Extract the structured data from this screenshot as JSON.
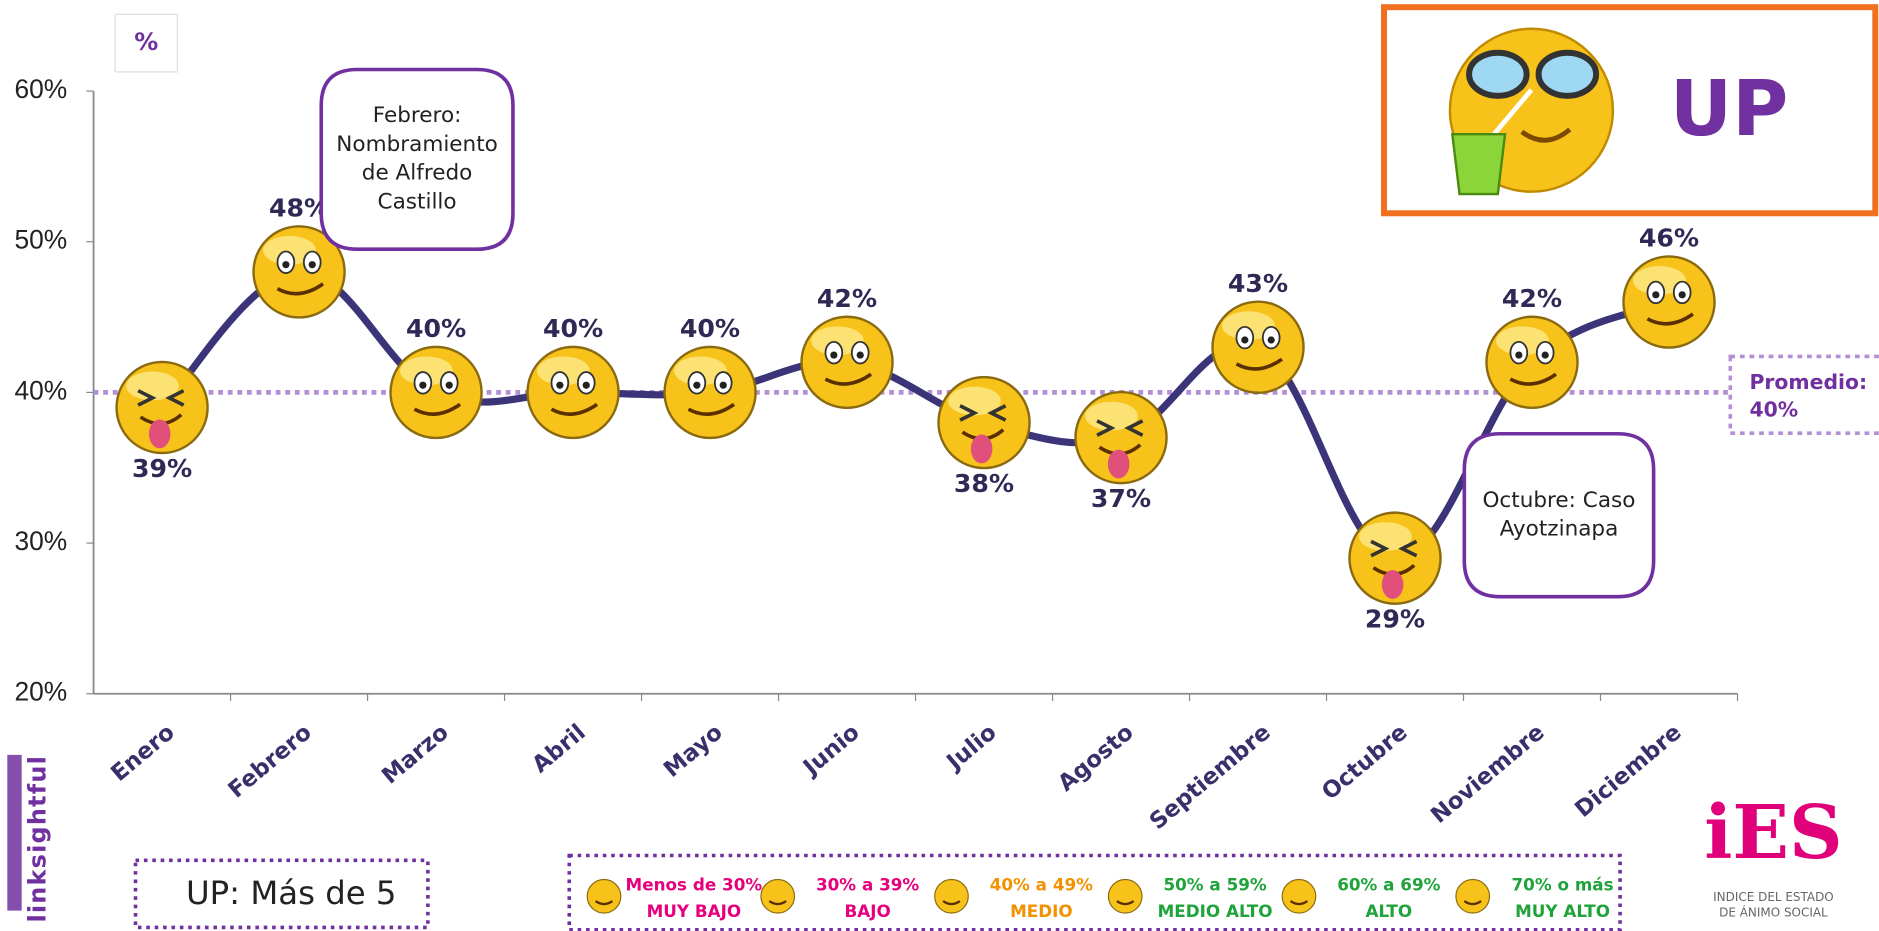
{
  "chart_data": {
    "type": "line",
    "title": "UP",
    "unit": "%",
    "note": "UP: Más de 5",
    "brand": "linksightful",
    "logo": "iES",
    "logo_caption": [
      "INDICE DEL ESTADO",
      "DE ÁNIMO SOCIAL"
    ],
    "categories": [
      "Enero",
      "Febrero",
      "Marzo",
      "Abril",
      "Mayo",
      "Junio",
      "Julio",
      "Agosto",
      "Septiembre",
      "Octubre",
      "Noviembre",
      "Diciembre"
    ],
    "series": [
      {
        "name": "UP",
        "color": "#3b3478",
        "values": [
          39,
          48,
          40,
          40,
          40,
          42,
          38,
          37,
          43,
          29,
          42,
          46
        ],
        "value_labels": [
          "39%",
          "48%",
          "40%",
          "40%",
          "40%",
          "42%",
          "38%",
          "37%",
          "43%",
          "29%",
          "42%",
          "46%"
        ]
      }
    ],
    "ylim": [
      20,
      60
    ],
    "yticks": [
      {
        "value": 20,
        "label": "20%"
      },
      {
        "value": 30,
        "label": "30%"
      },
      {
        "value": 40,
        "label": "40%"
      },
      {
        "value": 50,
        "label": "50%"
      },
      {
        "value": 60,
        "label": "60%"
      }
    ],
    "average": {
      "value": 40,
      "label": "Promedio:",
      "value_label": "40%",
      "color": "#b48fd6"
    },
    "annotations": [
      {
        "category": "Febrero",
        "text": [
          "Febrero:",
          "Nombramiento",
          "de Alfredo",
          "Castillo"
        ]
      },
      {
        "category": "Octubre",
        "text": [
          "Octubre: Caso",
          "Ayotzinapa"
        ]
      }
    ],
    "legend": [
      {
        "range": "Menos de 30%",
        "level": "MUY BAJO",
        "color": "#e6007e"
      },
      {
        "range": "30% a 39%",
        "level": "BAJO",
        "color": "#e6007e"
      },
      {
        "range": "40% a 49%",
        "level": "MEDIO",
        "color": "#f39200"
      },
      {
        "range": "50% a 59%",
        "level": "MEDIO ALTO",
        "color": "#1fa33a"
      },
      {
        "range": "60% a 69%",
        "level": "ALTO",
        "color": "#1fa33a"
      },
      {
        "range": "70% o más",
        "level": "MUY ALTO",
        "color": "#1fa33a"
      }
    ]
  }
}
